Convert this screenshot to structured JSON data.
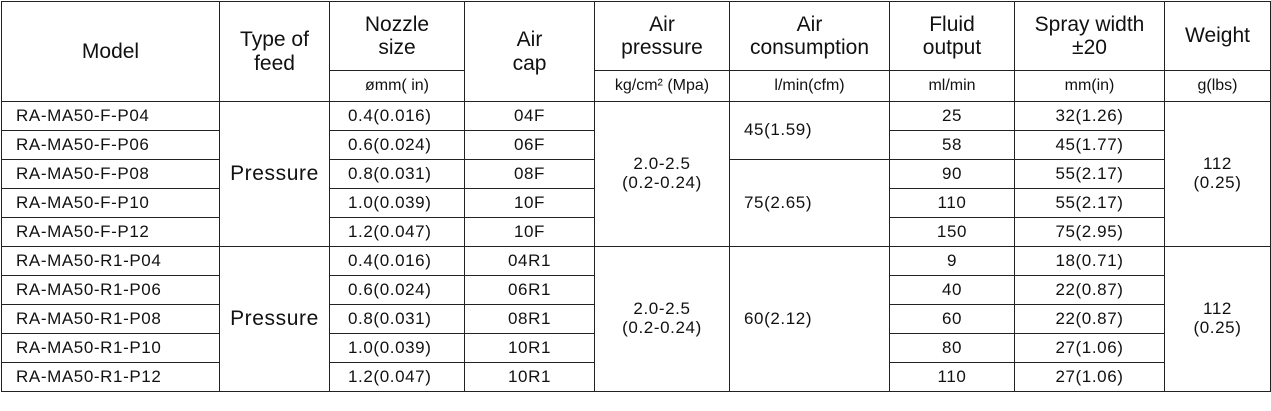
{
  "table": {
    "header": {
      "model": "Model",
      "type_of_feed": "Type of\nfeed",
      "nozzle_size": "Nozzle\nsize",
      "air_cap": "Air\ncap",
      "air_pressure": "Air\npressure",
      "air_consumption": "Air\nconsumption",
      "fluid_output": "Fluid\noutput",
      "spray_width": "Spray width\n±20",
      "weight": "Weight"
    },
    "units": {
      "nozzle_size": "ømm( in)",
      "air_pressure": "kg/cm² (Mpa)",
      "air_consumption": "l/min(cfm)",
      "fluid_output": "ml/min",
      "spray_width": "mm(in)",
      "weight": "g(lbs)"
    },
    "groups": [
      {
        "type_of_feed": "Pressure",
        "air_pressure": "2.0-2.5\n(0.2-0.24)",
        "weight": "112\n(0.25)",
        "rows": [
          {
            "model": "RA-MA50-F-P04",
            "nozzle_size": "0.4(0.016)",
            "air_cap": "04F",
            "air_consumption": "45(1.59)",
            "fluid_output": "25",
            "spray_width": "32(1.26)"
          },
          {
            "model": "RA-MA50-F-P06",
            "nozzle_size": "0.6(0.024)",
            "air_cap": "06F",
            "air_consumption": null,
            "fluid_output": "58",
            "spray_width": "45(1.77)"
          },
          {
            "model": "RA-MA50-F-P08",
            "nozzle_size": "0.8(0.031)",
            "air_cap": "08F",
            "air_consumption": "75(2.65)",
            "fluid_output": "90",
            "spray_width": "55(2.17)"
          },
          {
            "model": "RA-MA50-F-P10",
            "nozzle_size": "1.0(0.039)",
            "air_cap": "10F",
            "air_consumption": null,
            "fluid_output": "110",
            "spray_width": "55(2.17)"
          },
          {
            "model": "RA-MA50-F-P12",
            "nozzle_size": "1.2(0.047)",
            "air_cap": "10F",
            "air_consumption": null,
            "fluid_output": "150",
            "spray_width": "75(2.95)"
          }
        ]
      },
      {
        "type_of_feed": "Pressure",
        "air_pressure": "2.0-2.5\n(0.2-0.24)",
        "weight": "112\n(0.25)",
        "rows": [
          {
            "model": "RA-MA50-R1-P04",
            "nozzle_size": "0.4(0.016)",
            "air_cap": "04R1",
            "air_consumption": "60(2.12)",
            "fluid_output": "9",
            "spray_width": "18(0.71)"
          },
          {
            "model": "RA-MA50-R1-P06",
            "nozzle_size": "0.6(0.024)",
            "air_cap": "06R1",
            "air_consumption": null,
            "fluid_output": "40",
            "spray_width": "22(0.87)"
          },
          {
            "model": "RA-MA50-R1-P08",
            "nozzle_size": "0.8(0.031)",
            "air_cap": "08R1",
            "air_consumption": null,
            "fluid_output": "60",
            "spray_width": "22(0.87)"
          },
          {
            "model": "RA-MA50-R1-P10",
            "nozzle_size": "1.0(0.039)",
            "air_cap": "10R1",
            "air_consumption": null,
            "fluid_output": "80",
            "spray_width": "27(1.06)"
          },
          {
            "model": "RA-MA50-R1-P12",
            "nozzle_size": "1.2(0.047)",
            "air_cap": "10R1",
            "air_consumption": null,
            "fluid_output": "110",
            "spray_width": "27(1.06)"
          }
        ]
      }
    ]
  }
}
